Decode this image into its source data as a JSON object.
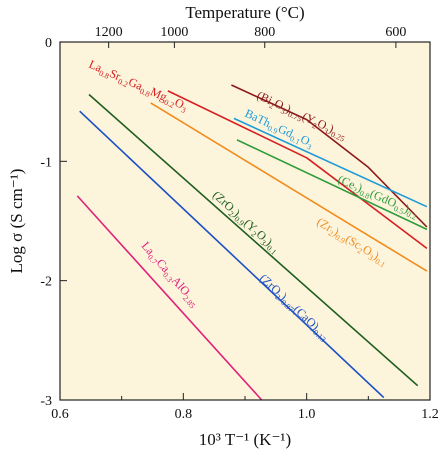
{
  "chart_data": {
    "type": "line",
    "xlabel": "10³ T⁻¹ (K⁻¹)",
    "ylabel": "Log σ (S cm⁻¹)",
    "top_axis_label": "Temperature (°C)",
    "xlim": [
      0.6,
      1.2
    ],
    "ylim": [
      -3,
      0
    ],
    "x_ticks": [
      0.6,
      0.8,
      1.0,
      1.2
    ],
    "x_minor_ticks": [
      0.7,
      0.9,
      1.1
    ],
    "y_ticks": [
      0,
      -1,
      -2,
      -3
    ],
    "top_ticks": [
      "1200",
      "1000",
      "800",
      "600"
    ],
    "top_tick_x": [
      0.6789,
      0.7855,
      0.932,
      1.1447
    ],
    "plot_background": "#fdf4dc",
    "series": [
      {
        "label_parts": [
          [
            "(Bi",
            ""
          ],
          [
            "2",
            "sub"
          ],
          [
            "O",
            ""
          ],
          [
            "3",
            "sub"
          ],
          [
            ")",
            ""
          ],
          [
            "0.75",
            "sub"
          ],
          [
            "(Y",
            ""
          ],
          [
            "2",
            "sub"
          ],
          [
            "O",
            ""
          ],
          [
            "3",
            "sub"
          ],
          [
            ")",
            ""
          ],
          [
            "0.25",
            "sub"
          ]
        ],
        "color": "#8b1a1a",
        "points": [
          [
            0.878,
            -0.36
          ],
          [
            1.0,
            -0.65
          ],
          [
            1.1,
            -1.05
          ],
          [
            1.195,
            -1.55
          ]
        ]
      },
      {
        "label_parts": [
          [
            "La",
            ""
          ],
          [
            "0.8",
            "sub"
          ],
          [
            "Sr",
            ""
          ],
          [
            "0.2",
            "sub"
          ],
          [
            "Ga",
            ""
          ],
          [
            "0.8",
            "sub"
          ],
          [
            "Mg",
            ""
          ],
          [
            "0.2",
            "sub"
          ],
          [
            "O",
            ""
          ],
          [
            "3",
            "sub"
          ]
        ],
        "color": "#d42020",
        "points": [
          [
            0.775,
            -0.41
          ],
          [
            1.0,
            -0.97
          ],
          [
            1.195,
            -1.73
          ]
        ]
      },
      {
        "label_parts": [
          [
            "BaTh",
            ""
          ],
          [
            "0.9",
            "sub"
          ],
          [
            "Gd",
            ""
          ],
          [
            "0.1",
            "sub"
          ],
          [
            "O",
            ""
          ],
          [
            "3",
            "sub"
          ]
        ],
        "color": "#1f9bd7",
        "points": [
          [
            0.882,
            -0.64
          ],
          [
            1.195,
            -1.38
          ]
        ]
      },
      {
        "label_parts": [
          [
            "(Ce",
            ""
          ],
          [
            "2",
            "sub"
          ],
          [
            ")",
            ""
          ],
          [
            "0.8",
            "sub"
          ],
          [
            "(GdO",
            ""
          ],
          [
            "0.5",
            "sub"
          ],
          [
            ")",
            ""
          ],
          [
            "0.2",
            "sub"
          ]
        ],
        "color": "#2e9c3a",
        "points": [
          [
            0.887,
            -0.82
          ],
          [
            1.195,
            -1.57
          ]
        ]
      },
      {
        "label_parts": [
          [
            "(Zr",
            ""
          ],
          [
            "2",
            "sub"
          ],
          [
            ")",
            ""
          ],
          [
            "0.9",
            "sub"
          ],
          [
            "(Sc",
            ""
          ],
          [
            "2",
            "sub"
          ],
          [
            "O",
            ""
          ],
          [
            "3",
            "sub"
          ],
          [
            ")",
            ""
          ],
          [
            "0.1",
            "sub"
          ]
        ],
        "color": "#f08c1e",
        "points": [
          [
            0.747,
            -0.51
          ],
          [
            1.195,
            -1.92
          ]
        ]
      },
      {
        "label_parts": [
          [
            "(ZrO",
            ""
          ],
          [
            "2",
            "sub"
          ],
          [
            ")",
            ""
          ],
          [
            "0.9",
            "sub"
          ],
          [
            "(Y",
            ""
          ],
          [
            "2",
            "sub"
          ],
          [
            "O",
            ""
          ],
          [
            "3",
            "sub"
          ],
          [
            ")",
            ""
          ],
          [
            "0.1",
            "sub"
          ]
        ],
        "color": "#1e5e1e",
        "points": [
          [
            0.647,
            -0.44
          ],
          [
            1.18,
            -2.88
          ]
        ]
      },
      {
        "label_parts": [
          [
            "(ZrO",
            ""
          ],
          [
            "2",
            "sub"
          ],
          [
            ")",
            ""
          ],
          [
            "0.87",
            "sub"
          ],
          [
            "(CaO)",
            ""
          ],
          [
            "0.13",
            "sub"
          ]
        ],
        "color": "#1b4fc4",
        "points": [
          [
            0.632,
            -0.58
          ],
          [
            1.125,
            -2.98
          ]
        ]
      },
      {
        "label_parts": [
          [
            "La",
            ""
          ],
          [
            "0.7",
            "sub"
          ],
          [
            "Ca",
            ""
          ],
          [
            "0.3",
            "sub"
          ],
          [
            "AlO",
            ""
          ],
          [
            "2.85",
            "sub"
          ]
        ],
        "color": "#e0207a",
        "points": [
          [
            0.628,
            -1.29
          ],
          [
            0.927,
            -3.0
          ]
        ]
      }
    ]
  }
}
